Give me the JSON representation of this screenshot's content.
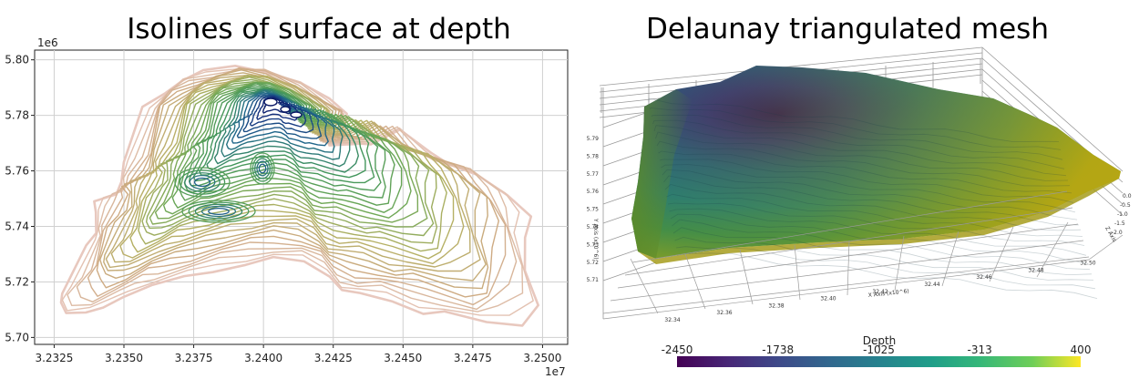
{
  "chart_data": [
    {
      "type": "contour",
      "title": "Isolines of surface at depth",
      "x_ticks": [
        "3.2325",
        "3.2350",
        "3.2375",
        "3.2400",
        "3.2425",
        "3.2450",
        "3.2475",
        "3.2500"
      ],
      "x_tick_values": [
        3.2325,
        3.235,
        3.2375,
        3.24,
        3.2425,
        3.245,
        3.2475,
        3.25
      ],
      "x_offset": "1e7",
      "y_ticks": [
        "5.70",
        "5.72",
        "5.74",
        "5.76",
        "5.78",
        "5.80"
      ],
      "y_tick_values": [
        5.7,
        5.72,
        5.74,
        5.76,
        5.78,
        5.8
      ],
      "y_offset": "1e6",
      "xlim": [
        3.2318,
        3.2509
      ],
      "ylim": [
        5.6975,
        5.8035
      ],
      "grid": true
    },
    {
      "type": "surface3d",
      "title": "Delaunay triangulated mesh",
      "x_axis_label": "X Axis (x10^6)",
      "y_axis_label": "Y Axis (x10^6)",
      "z_axis_label": "Z Axis",
      "x_ticks": [
        "32.34",
        "32.36",
        "32.38",
        "32.40",
        "32.42",
        "32.44",
        "32.46",
        "32.48",
        "32.50"
      ],
      "y_ticks": [
        "5.79",
        "5.78",
        "5.77",
        "5.76",
        "5.75",
        "5.74",
        "5.73",
        "5.72",
        "5.71"
      ],
      "z_ticks": [
        "0.0",
        "-0.5",
        "-1.0",
        "-1.5",
        "-2.0"
      ],
      "colorbar": {
        "title": "Depth",
        "ticks": [
          "-2450",
          "-1738",
          "-1025",
          "-313",
          "400"
        ],
        "tick_values": [
          -2450,
          -1738,
          -1025,
          -313,
          400
        ],
        "range": [
          -2450,
          400
        ]
      }
    }
  ]
}
